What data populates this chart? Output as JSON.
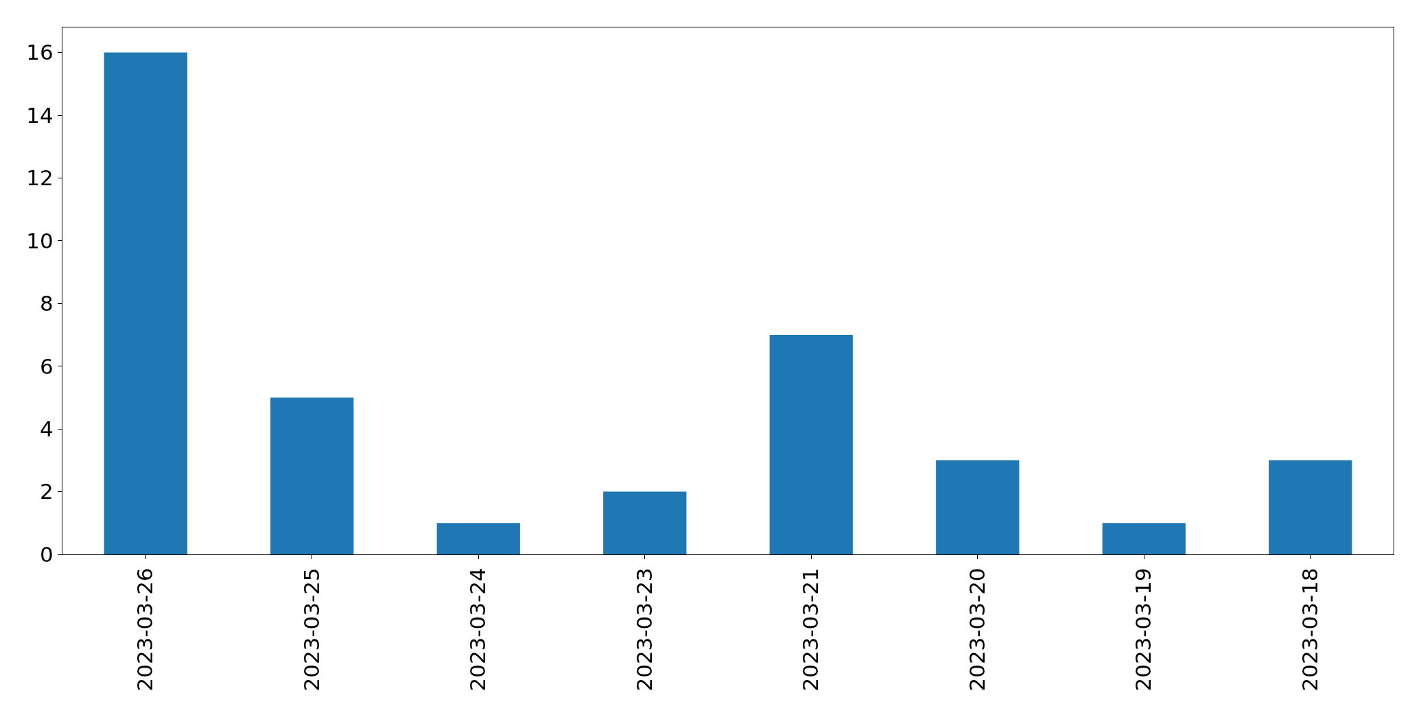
{
  "chart_data": {
    "type": "bar",
    "categories": [
      "2023-03-26",
      "2023-03-25",
      "2023-03-24",
      "2023-03-23",
      "2023-03-21",
      "2023-03-20",
      "2023-03-19",
      "2023-03-18"
    ],
    "values": [
      16,
      5,
      1,
      2,
      7,
      3,
      1,
      3
    ],
    "color": "#1f77b4",
    "ylim": [
      0,
      16.8
    ],
    "yticks": [
      0,
      2,
      4,
      6,
      8,
      10,
      12,
      14,
      16
    ]
  }
}
